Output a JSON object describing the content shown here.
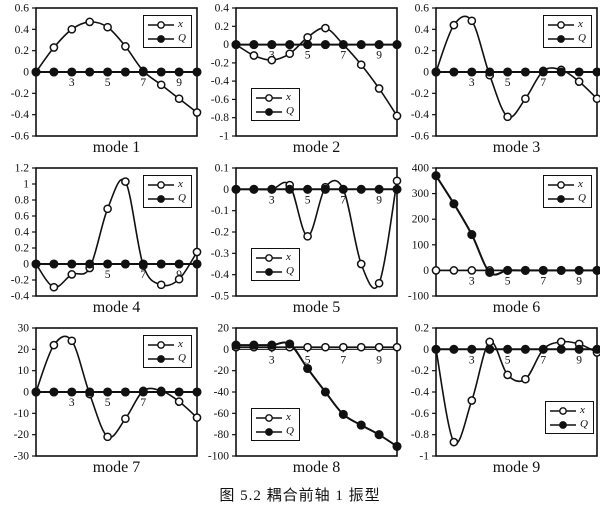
{
  "caption": "图 5.2  耦合前轴 1 振型",
  "colors": {
    "ink": "#111111",
    "paper": "#ffffff"
  },
  "legend": {
    "series_labels": [
      "x",
      "Q"
    ]
  },
  "chart_data": [
    {
      "type": "line",
      "title": "mode 1",
      "x": [
        1,
        2,
        3,
        4,
        5,
        6,
        7,
        8,
        9,
        10
      ],
      "xtick_positions": [
        3,
        5,
        7,
        9
      ],
      "xtick_labels": [
        "3",
        "5",
        "7",
        "9"
      ],
      "ytick_labels": [
        "0.6",
        "0.4",
        "0.2",
        "0",
        "-0.2",
        "-0.4",
        "-0.6"
      ],
      "ylim": [
        -0.6,
        0.6
      ],
      "legend_pos": "top-right",
      "series": [
        {
          "name": "x",
          "marker": "open-circle",
          "values": [
            0,
            0.23,
            0.4,
            0.47,
            0.42,
            0.24,
            0.01,
            -0.12,
            -0.25,
            -0.38
          ]
        },
        {
          "name": "Q",
          "marker": "filled-circle",
          "values": [
            0,
            0,
            0,
            0,
            0,
            0,
            0,
            0,
            0,
            0
          ]
        }
      ]
    },
    {
      "type": "line",
      "title": "mode 2",
      "x": [
        1,
        2,
        3,
        4,
        5,
        6,
        7,
        8,
        9,
        10
      ],
      "xtick_positions": [
        3,
        5,
        7,
        9
      ],
      "xtick_labels": [
        "3",
        "5",
        "7",
        "9"
      ],
      "ytick_labels": [
        "0.4",
        "0.2",
        "0",
        "-0.2",
        "-0.4",
        "-0.6",
        "-0.8",
        "-1"
      ],
      "ylim": [
        -1,
        0.4
      ],
      "legend_pos": "bottom-left",
      "series": [
        {
          "name": "x",
          "marker": "open-circle",
          "values": [
            0,
            -0.12,
            -0.17,
            -0.1,
            0.08,
            0.18,
            0,
            -0.22,
            -0.48,
            -0.78
          ]
        },
        {
          "name": "Q",
          "marker": "filled-circle",
          "values": [
            0,
            0,
            0,
            0,
            0,
            0,
            0,
            0,
            0,
            0
          ]
        }
      ]
    },
    {
      "type": "line",
      "title": "mode 3",
      "x": [
        1,
        2,
        3,
        4,
        5,
        6,
        7,
        8,
        9,
        10
      ],
      "xtick_positions": [
        3,
        5,
        7,
        9
      ],
      "xtick_labels": [
        "3",
        "5",
        "7",
        "9"
      ],
      "ytick_labels": [
        "0.6",
        "0.4",
        "0.2",
        "0",
        "-0.2",
        "-0.4",
        "-0.6"
      ],
      "ylim": [
        -0.6,
        0.6
      ],
      "legend_pos": "top-right",
      "series": [
        {
          "name": "x",
          "marker": "open-circle",
          "values": [
            0,
            0.44,
            0.48,
            -0.03,
            -0.42,
            -0.25,
            0.01,
            0.02,
            -0.09,
            -0.25
          ]
        },
        {
          "name": "Q",
          "marker": "filled-circle",
          "values": [
            0,
            0,
            0,
            0,
            0,
            0,
            0,
            0,
            0,
            0
          ]
        }
      ]
    },
    {
      "type": "line",
      "title": "mode 4",
      "x": [
        1,
        2,
        3,
        4,
        5,
        6,
        7,
        8,
        9,
        10
      ],
      "xtick_positions": [
        3,
        5,
        7,
        9
      ],
      "xtick_labels": [
        "3",
        "5",
        "7",
        "9"
      ],
      "ytick_labels": [
        "1.2",
        "1",
        "0.8",
        "0.6",
        "0.4",
        "0.2",
        "0",
        "-0.2",
        "-0.4"
      ],
      "ylim": [
        -0.4,
        1.2
      ],
      "legend_pos": "top-right",
      "series": [
        {
          "name": "x",
          "marker": "open-circle",
          "values": [
            0,
            -0.29,
            -0.13,
            -0.05,
            0.69,
            1.03,
            -0.02,
            -0.26,
            -0.19,
            0.15
          ]
        },
        {
          "name": "Q",
          "marker": "filled-circle",
          "values": [
            0,
            0,
            0,
            0,
            0,
            0,
            0,
            0,
            0,
            0
          ]
        }
      ]
    },
    {
      "type": "line",
      "title": "mode 5",
      "x": [
        1,
        2,
        3,
        4,
        5,
        6,
        7,
        8,
        9,
        10
      ],
      "xtick_positions": [
        3,
        5,
        7,
        9
      ],
      "xtick_labels": [
        "3",
        "5",
        "7",
        "9"
      ],
      "ytick_labels": [
        "0.1",
        "0",
        "-0.1",
        "-0.2",
        "-0.3",
        "-0.4",
        "-0.5"
      ],
      "ylim": [
        -0.5,
        0.1
      ],
      "legend_pos": "bottom-left",
      "series": [
        {
          "name": "x",
          "marker": "open-circle",
          "values": [
            0,
            0,
            0,
            0.02,
            -0.22,
            0.01,
            0,
            -0.35,
            -0.44,
            0.04
          ]
        },
        {
          "name": "Q",
          "marker": "filled-circle",
          "values": [
            0,
            0,
            0,
            0,
            0,
            0,
            0,
            0,
            0,
            0
          ]
        }
      ]
    },
    {
      "type": "line",
      "title": "mode 6",
      "x": [
        1,
        2,
        3,
        4,
        5,
        6,
        7,
        8,
        9,
        10
      ],
      "xtick_positions": [
        3,
        5,
        7,
        9
      ],
      "xtick_labels": [
        "3",
        "5",
        "7",
        "9"
      ],
      "ytick_labels": [
        "400",
        "300",
        "200",
        "100",
        "0",
        "-100"
      ],
      "ylim": [
        -100,
        400
      ],
      "legend_pos": "top-right",
      "series": [
        {
          "name": "x",
          "marker": "open-circle",
          "values": [
            0,
            0,
            0,
            0,
            0,
            0,
            0,
            0,
            0,
            0
          ]
        },
        {
          "name": "Q",
          "marker": "filled-circle",
          "values": [
            370,
            260,
            140,
            -8,
            0,
            0,
            0,
            0,
            0,
            0
          ]
        }
      ]
    },
    {
      "type": "line",
      "title": "mode 7",
      "x": [
        1,
        2,
        3,
        4,
        5,
        6,
        7,
        8,
        9,
        10
      ],
      "xtick_positions": [
        3,
        5,
        7,
        9
      ],
      "xtick_labels": [
        "3",
        "5",
        "7",
        "9"
      ],
      "ytick_labels": [
        "30",
        "20",
        "10",
        "0",
        "-10",
        "-20",
        "-30"
      ],
      "ylim": [
        -30,
        30
      ],
      "legend_pos": "top-right",
      "series": [
        {
          "name": "x",
          "marker": "open-circle",
          "values": [
            0,
            22,
            24,
            -1,
            -21,
            -12.5,
            0.5,
            0.5,
            -4.5,
            -12
          ]
        },
        {
          "name": "Q",
          "marker": "filled-circle",
          "values": [
            0,
            0,
            0,
            0,
            0,
            0,
            0,
            0,
            0,
            0
          ]
        }
      ]
    },
    {
      "type": "line",
      "title": "mode 8",
      "x": [
        1,
        2,
        3,
        4,
        5,
        6,
        7,
        8,
        9,
        10
      ],
      "xtick_positions": [
        3,
        5,
        7,
        9
      ],
      "xtick_labels": [
        "3",
        "5",
        "7",
        "9"
      ],
      "ytick_labels": [
        "20",
        "0",
        "-20",
        "-40",
        "-60",
        "-80",
        "-100"
      ],
      "ylim": [
        -100,
        20
      ],
      "legend_pos": "bottom-left",
      "series": [
        {
          "name": "x",
          "marker": "open-circle",
          "values": [
            2,
            2,
            2,
            2,
            2,
            2,
            2,
            2,
            2,
            2
          ]
        },
        {
          "name": "Q",
          "marker": "filled-circle",
          "values": [
            4,
            4,
            4,
            5,
            -18,
            -40,
            -61,
            -71,
            -80,
            -91
          ]
        }
      ]
    },
    {
      "type": "line",
      "title": "mode 9",
      "x": [
        1,
        2,
        3,
        4,
        5,
        6,
        7,
        8,
        9,
        10
      ],
      "xtick_positions": [
        3,
        5,
        7,
        9
      ],
      "xtick_labels": [
        "3",
        "5",
        "7",
        "9"
      ],
      "ytick_labels": [
        "0.2",
        "0",
        "-0.2",
        "-0.4",
        "-0.6",
        "-0.8",
        "-1"
      ],
      "ylim": [
        -1,
        0.2
      ],
      "legend_pos": "bottom-right",
      "series": [
        {
          "name": "x",
          "marker": "open-circle",
          "values": [
            0,
            -0.87,
            -0.48,
            0.07,
            -0.24,
            -0.28,
            0,
            0.07,
            0.05,
            -0.03
          ]
        },
        {
          "name": "Q",
          "marker": "filled-circle",
          "values": [
            0,
            0,
            0,
            0,
            0,
            0,
            0,
            0,
            0,
            0
          ]
        }
      ]
    }
  ]
}
